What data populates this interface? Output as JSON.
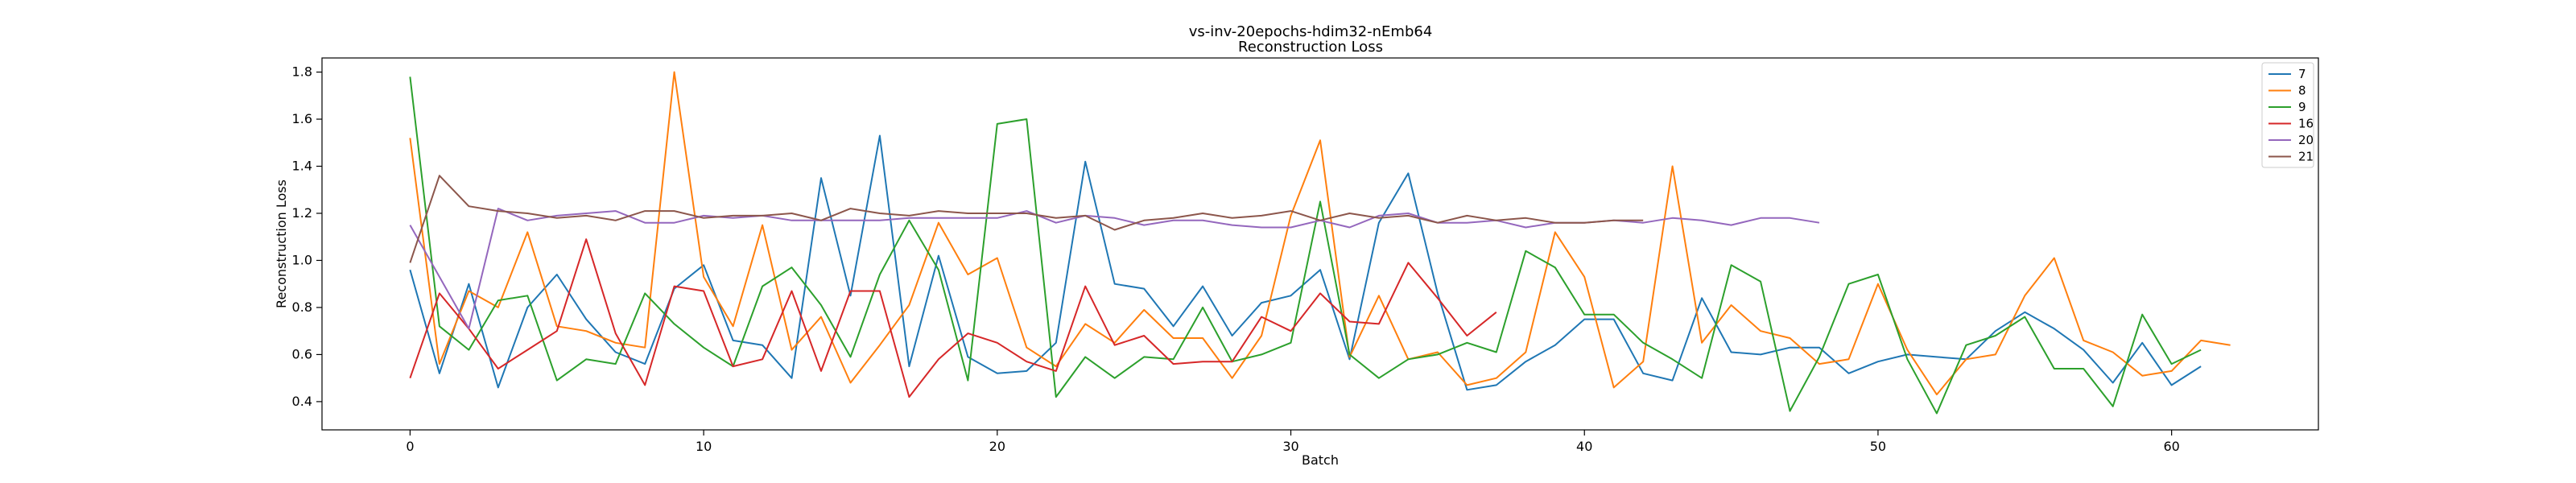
{
  "chart_data": {
    "type": "line",
    "title": "vs-inv-20epochs-hdim32-nEmb64",
    "subtitle": "Reconstruction Loss",
    "xlabel": "Batch",
    "ylabel": "Reconstruction Loss",
    "xlim": [
      -3,
      65
    ],
    "ylim": [
      0.28,
      1.86
    ],
    "xticks": [
      0,
      10,
      20,
      30,
      40,
      50,
      60
    ],
    "yticks": [
      0.4,
      0.6,
      0.8,
      1.0,
      1.2,
      1.4,
      1.6,
      1.8
    ],
    "xtick_labels": [
      "0",
      "10",
      "20",
      "30",
      "40",
      "50",
      "60"
    ],
    "ytick_labels": [
      "0.4",
      "0.6",
      "0.8",
      "1.0",
      "1.2",
      "1.4",
      "1.6",
      "1.8"
    ],
    "grid": false,
    "legend_position": "top-right",
    "series": [
      {
        "name": "7",
        "color": "#1f77b4",
        "values": [
          0.96,
          0.52,
          0.9,
          0.46,
          0.8,
          0.94,
          0.75,
          0.61,
          0.56,
          0.88,
          0.98,
          0.66,
          0.64,
          0.5,
          1.35,
          0.85,
          1.53,
          0.55,
          1.02,
          0.59,
          0.52,
          0.53,
          0.65,
          1.42,
          0.9,
          0.88,
          0.72,
          0.89,
          0.68,
          0.82,
          0.85,
          0.96,
          0.58,
          1.16,
          1.37,
          0.86,
          0.45,
          0.47,
          0.57,
          0.64,
          0.75,
          0.75,
          0.52,
          0.49,
          0.84,
          0.61,
          0.6,
          0.63,
          0.63,
          0.52,
          0.57,
          0.6,
          0.59,
          0.58,
          0.7,
          0.78,
          0.71,
          0.62,
          0.48,
          0.65,
          0.47,
          0.55
        ]
      },
      {
        "name": "8",
        "color": "#ff7f0e",
        "values": [
          1.52,
          0.56,
          0.87,
          0.8,
          1.12,
          0.72,
          0.7,
          0.65,
          0.63,
          1.8,
          0.93,
          0.72,
          1.15,
          0.62,
          0.76,
          0.48,
          0.64,
          0.81,
          1.16,
          0.94,
          1.01,
          0.63,
          0.55,
          0.73,
          0.65,
          0.79,
          0.67,
          0.67,
          0.5,
          0.68,
          1.19,
          1.51,
          0.59,
          0.85,
          0.58,
          0.61,
          0.47,
          0.5,
          0.61,
          1.12,
          0.93,
          0.46,
          0.57,
          1.4,
          0.65,
          0.81,
          0.7,
          0.67,
          0.56,
          0.58,
          0.9,
          0.62,
          0.43,
          0.58,
          0.6,
          0.85,
          1.01,
          0.66,
          0.61,
          0.51,
          0.53,
          0.66,
          0.64
        ]
      },
      {
        "name": "9",
        "color": "#2ca02c",
        "values": [
          1.78,
          0.72,
          0.62,
          0.83,
          0.85,
          0.49,
          0.58,
          0.56,
          0.86,
          0.73,
          0.63,
          0.55,
          0.89,
          0.97,
          0.81,
          0.59,
          0.94,
          1.17,
          0.96,
          0.49,
          1.58,
          1.6,
          0.42,
          0.59,
          0.5,
          0.59,
          0.58,
          0.8,
          0.57,
          0.6,
          0.65,
          1.25,
          0.6,
          0.5,
          0.58,
          0.6,
          0.65,
          0.61,
          1.04,
          0.97,
          0.77,
          0.77,
          0.65,
          0.58,
          0.5,
          0.98,
          0.91,
          0.36,
          0.59,
          0.9,
          0.94,
          0.58,
          0.35,
          0.64,
          0.68,
          0.76,
          0.54,
          0.54,
          0.38,
          0.77,
          0.56,
          0.62
        ]
      },
      {
        "name": "16",
        "color": "#d62728",
        "values": [
          0.5,
          0.86,
          0.71,
          0.54,
          0.62,
          0.7,
          1.09,
          0.69,
          0.47,
          0.89,
          0.87,
          0.55,
          0.58,
          0.87,
          0.53,
          0.87,
          0.87,
          0.42,
          0.58,
          0.69,
          0.65,
          0.57,
          0.53,
          0.89,
          0.64,
          0.68,
          0.56,
          0.57,
          0.57,
          0.76,
          0.7,
          0.86,
          0.74,
          0.73,
          0.99,
          0.84,
          0.68,
          0.78
        ]
      },
      {
        "name": "20",
        "color": "#9467bd",
        "values": [
          1.15,
          0.93,
          0.71,
          1.22,
          1.17,
          1.19,
          1.2,
          1.21,
          1.16,
          1.16,
          1.19,
          1.18,
          1.19,
          1.17,
          1.17,
          1.17,
          1.17,
          1.18,
          1.18,
          1.18,
          1.18,
          1.21,
          1.16,
          1.19,
          1.18,
          1.15,
          1.17,
          1.17,
          1.15,
          1.14,
          1.14,
          1.17,
          1.14,
          1.19,
          1.2,
          1.16,
          1.16,
          1.17,
          1.14,
          1.16,
          1.16,
          1.17,
          1.16,
          1.18,
          1.17,
          1.15,
          1.18,
          1.18,
          1.16
        ]
      },
      {
        "name": "21",
        "color": "#8c564b",
        "values": [
          0.99,
          1.36,
          1.23,
          1.21,
          1.2,
          1.18,
          1.19,
          1.17,
          1.21,
          1.21,
          1.18,
          1.19,
          1.19,
          1.2,
          1.17,
          1.22,
          1.2,
          1.19,
          1.21,
          1.2,
          1.2,
          1.2,
          1.18,
          1.19,
          1.13,
          1.17,
          1.18,
          1.2,
          1.18,
          1.19,
          1.21,
          1.17,
          1.2,
          1.18,
          1.19,
          1.16,
          1.19,
          1.17,
          1.18,
          1.16,
          1.16,
          1.17,
          1.17
        ]
      }
    ]
  }
}
